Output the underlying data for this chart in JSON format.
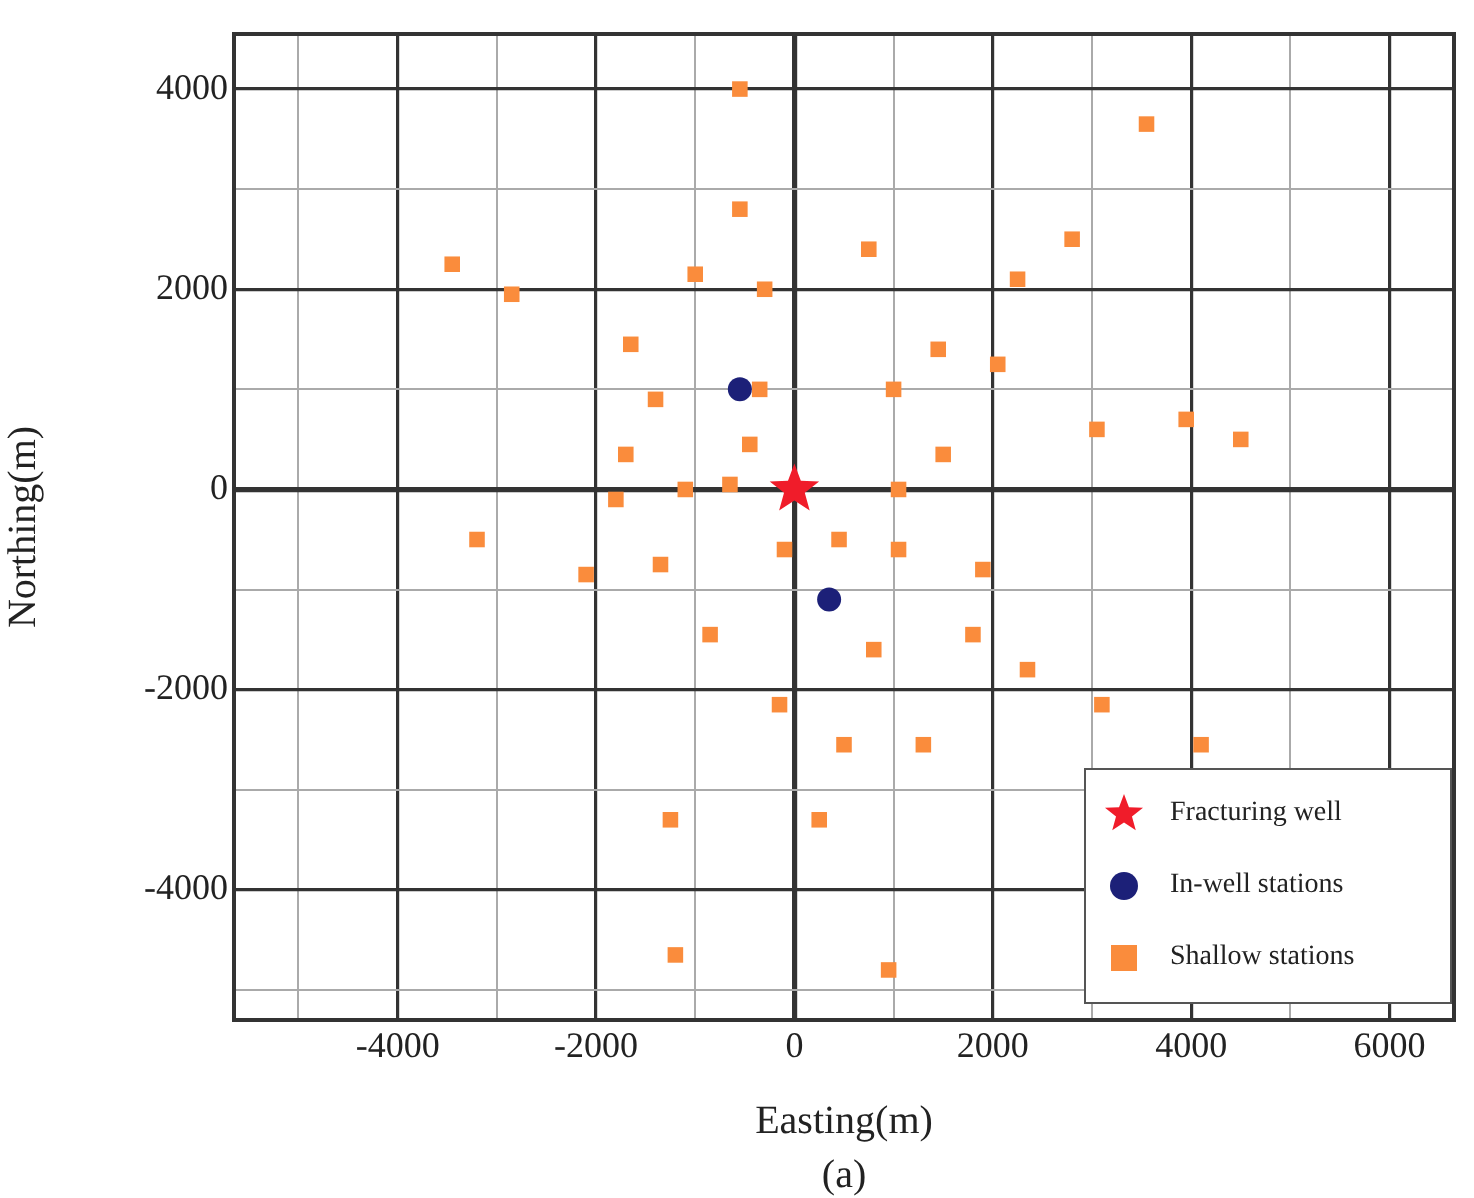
{
  "chart_data": {
    "type": "scatter",
    "xlabel": "Easting(m)",
    "ylabel": "Northing(m)",
    "annotations": [
      "(a)"
    ],
    "xlim": [
      -5650,
      6650
    ],
    "ylim": [
      -5300,
      4550
    ],
    "xticks": [
      {
        "value": -5000,
        "label": null
      },
      -4000,
      {
        "value": -3000,
        "label": null
      },
      -2000,
      {
        "value": -1000,
        "label": null
      },
      0,
      {
        "value": 1000,
        "label": null
      },
      2000,
      {
        "value": 3000,
        "label": null
      },
      4000,
      {
        "value": 5000,
        "label": null
      },
      6000
    ],
    "yticks": [
      {
        "value": -5000,
        "label": null
      },
      -4000,
      {
        "value": -3000,
        "label": null
      },
      -2000,
      {
        "value": -1000,
        "label": null
      },
      0,
      {
        "value": 1000,
        "label": null
      },
      2000,
      {
        "value": 3000,
        "label": null
      },
      4000
    ],
    "grid": true,
    "legend": "bottom right",
    "series": [
      {
        "name": "Fracturing well",
        "color": "#f01c2a",
        "marker": "star",
        "x": [
          0
        ],
        "values": [
          0
        ]
      },
      {
        "name": "In-well stations",
        "color": "#1c2078",
        "marker": "circle",
        "x": [
          -550,
          350
        ],
        "values": [
          1000,
          -1100
        ]
      },
      {
        "name": "Shallow stations",
        "color": "#fa8c3c",
        "marker": "square",
        "x": [
          -550,
          -550,
          -3450,
          -2850,
          -1000,
          -300,
          -1650,
          -350,
          -1400,
          -1700,
          -450,
          -650,
          -1100,
          -1800,
          3550,
          750,
          2800,
          2250,
          1450,
          2050,
          1000,
          3050,
          3950,
          4500,
          1500,
          1050,
          -3200,
          -2100,
          -1350,
          -100,
          450,
          -850,
          -150,
          500,
          -1250,
          250,
          -1200,
          1050,
          1900,
          800,
          1800,
          2350,
          3100,
          1300,
          4100,
          950
        ],
        "values": [
          4000,
          2800,
          2250,
          1950,
          2150,
          2000,
          1450,
          1000,
          900,
          350,
          450,
          50,
          0,
          -100,
          3650,
          2400,
          2500,
          2100,
          1400,
          1250,
          1000,
          600,
          700,
          500,
          350,
          0,
          -500,
          -850,
          -750,
          -600,
          -500,
          -1450,
          -2150,
          -2550,
          -3300,
          -3300,
          -4650,
          -600,
          -800,
          -1600,
          -1450,
          -1800,
          -2150,
          -2550,
          -2550,
          -4800
        ]
      }
    ]
  }
}
